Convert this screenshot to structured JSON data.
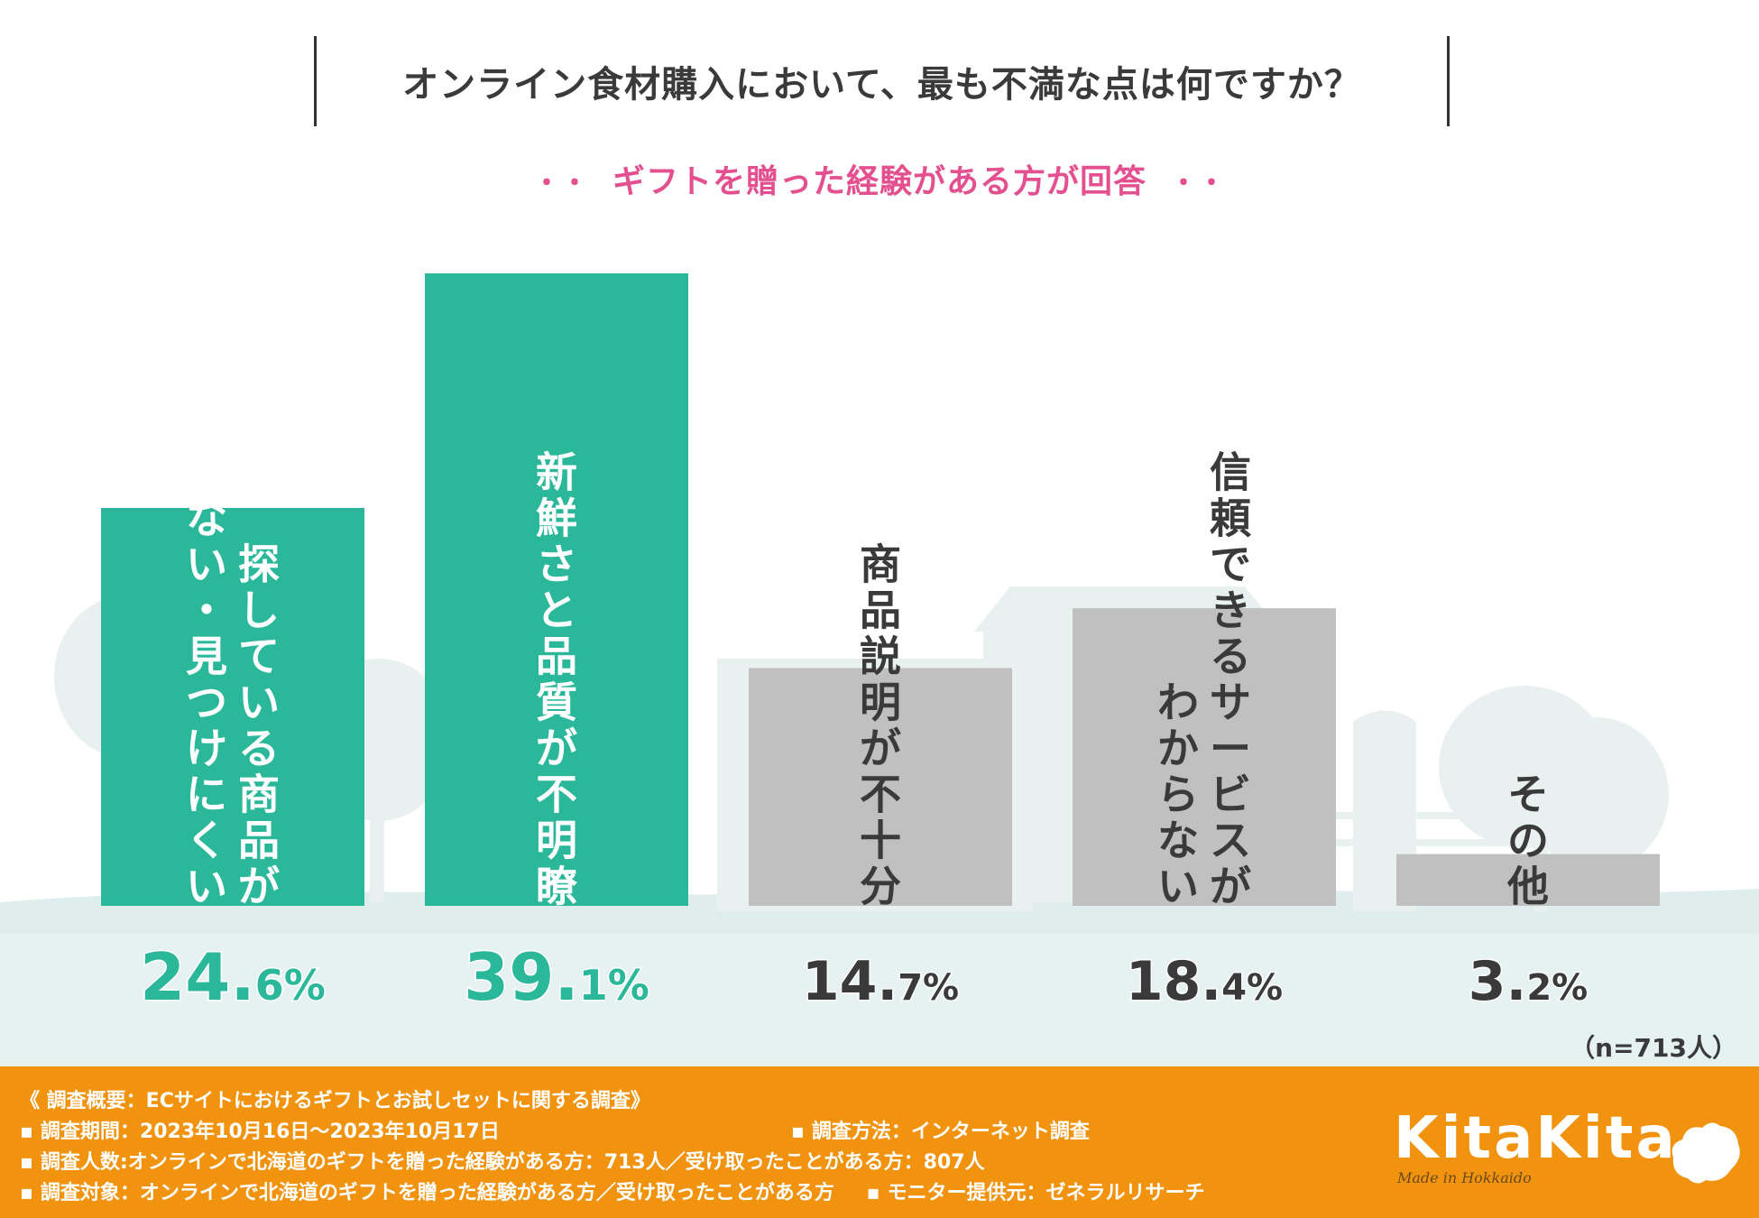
{
  "title": "オンライン食材購入において、最も不満な点は何ですか？",
  "subtitle": "ギフトを贈った経験がある方が回答",
  "subtitle_dots": "・・",
  "sample_size": "（n=713人）",
  "colors": {
    "highlight": "#2bb89a",
    "normal": "#c0c0c0",
    "subtitle": "#e4508f",
    "footer": "#f1930f"
  },
  "chart_data": {
    "type": "bar",
    "title": "オンライン食材購入において、最も不満な点は何ですか？",
    "unit": "%",
    "ylim": [
      0,
      45
    ],
    "categories": [
      [
        "探している商品が",
        "見つからない・見つけにくい"
      ],
      [
        "新鮮さと品質が不明瞭"
      ],
      [
        "商品説明が不十分"
      ],
      [
        "信頼できるサービスが",
        "わからない"
      ],
      [
        "その他"
      ]
    ],
    "values": [
      24.6,
      39.1,
      14.7,
      18.4,
      3.2
    ],
    "value_labels": [
      {
        "main": "24.",
        "dec": "6%"
      },
      {
        "main": "39.",
        "dec": "1%"
      },
      {
        "main": "14.",
        "dec": "7%"
      },
      {
        "main": "18.",
        "dec": "4%"
      },
      {
        "main": "3.",
        "dec": "2%"
      }
    ],
    "highlight": [
      true,
      true,
      false,
      false,
      false
    ]
  },
  "footer": {
    "line1": "《 調査概要：ECサイトにおけるギフトとお試しセットに関する調査》",
    "line2_a": "調査期間：2023年10月16日～2023年10月17日",
    "line2_b": "調査方法：インターネット調査",
    "line3": "調査人数:オンラインで北海道のギフトを贈った経験がある方：713人／受け取ったことがある方：807人",
    "line4_a": "調査対象：オンラインで北海道のギフトを贈った経験がある方／受け取ったことがある方",
    "line4_b": "モニター提供元：ゼネラルリサーチ",
    "bullet": "▪"
  },
  "brand": {
    "name": "KitaKita",
    "tagline": "Made in Hokkaido"
  }
}
